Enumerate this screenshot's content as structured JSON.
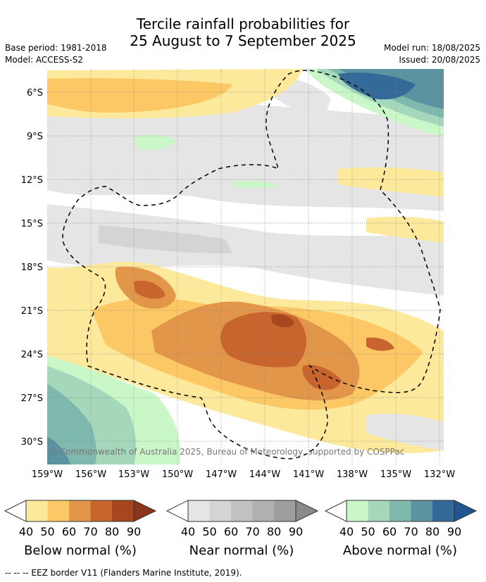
{
  "header": {
    "title_line1": "Tercile rainfall probabilities for",
    "title_line2": "25 August to 7 September 2025",
    "base_period": "Base period: 1981-2018",
    "model": "Model: ACCESS-S2",
    "model_run": "Model run: 18/08/2025",
    "issued": "Issued: 20/08/2025"
  },
  "map": {
    "lat_ticks": [
      "6°S",
      "9°S",
      "12°S",
      "15°S",
      "18°S",
      "21°S",
      "24°S",
      "27°S",
      "30°S"
    ],
    "lon_ticks": [
      "159°W",
      "156°W",
      "153°W",
      "150°W",
      "147°W",
      "144°W",
      "141°W",
      "138°W",
      "135°W",
      "132°W"
    ],
    "copyright": "© Commonwealth of Australia 2025, Bureau of Meteorology, supported by COSPPac"
  },
  "legends": [
    {
      "name": "below",
      "title": "Below normal (%)",
      "labels": [
        "40",
        "50",
        "60",
        "70",
        "80",
        "90"
      ],
      "colors": [
        "#fde99b",
        "#fcc865",
        "#e2964a",
        "#c8642e",
        "#a7461f",
        "#8b3418"
      ]
    },
    {
      "name": "near",
      "title": "Near normal (%)",
      "labels": [
        "40",
        "50",
        "60",
        "70",
        "80",
        "90"
      ],
      "colors": [
        "#e5e5e5",
        "#d4d4d4",
        "#c2c2c2",
        "#b0b0b0",
        "#9e9e9e",
        "#8a8a8a"
      ]
    },
    {
      "name": "above",
      "title": "Above normal (%)",
      "labels": [
        "40",
        "50",
        "60",
        "70",
        "80",
        "90"
      ],
      "colors": [
        "#c9f7c8",
        "#a5d8bb",
        "#7fb9ad",
        "#5b94a0",
        "#336a97",
        "#1f5590"
      ]
    }
  ],
  "footer": "--  --  -- EEZ border V11 (Flanders Marine Institute, 2019)."
}
